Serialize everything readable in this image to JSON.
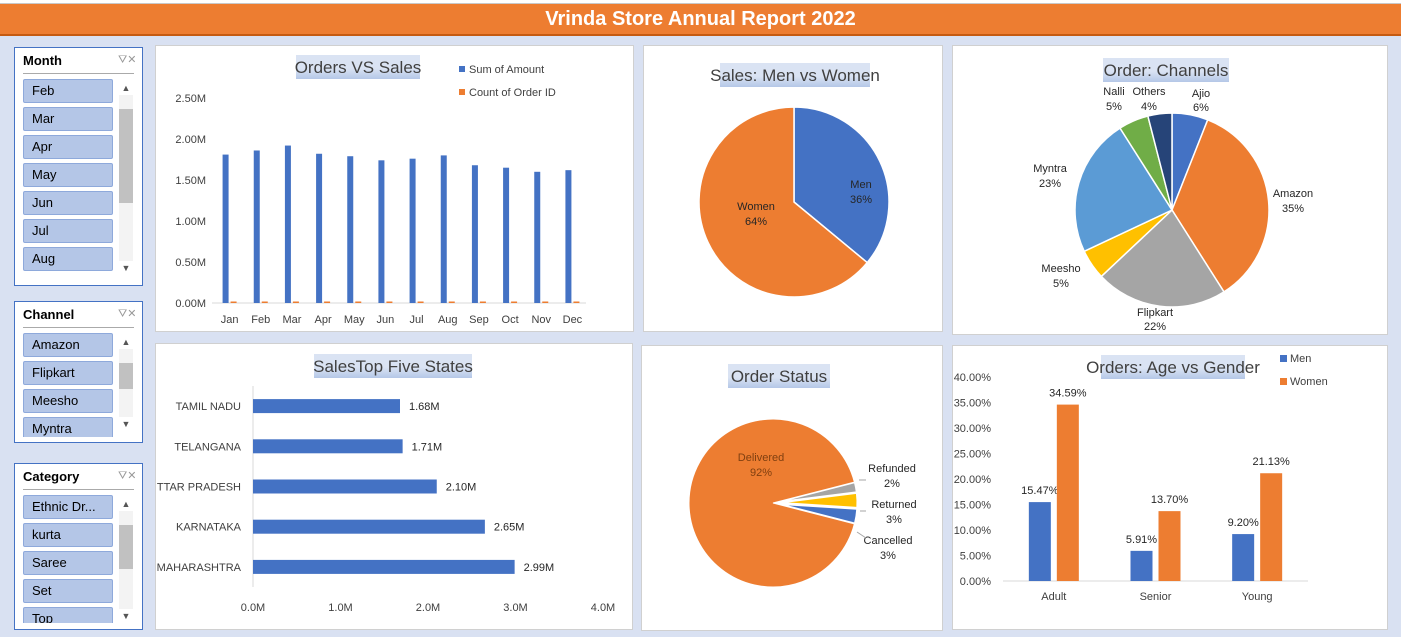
{
  "banner": {
    "title": "Vrinda Store Annual Report 2022"
  },
  "slicers": {
    "month": {
      "title": "Month",
      "items": [
        "Feb",
        "Mar",
        "Apr",
        "May",
        "Jun",
        "Jul",
        "Aug"
      ]
    },
    "channel": {
      "title": "Channel",
      "items": [
        "Amazon",
        "Flipkart",
        "Meesho",
        "Myntra"
      ]
    },
    "category": {
      "title": "Category",
      "items": [
        "Ethnic Dr...",
        "kurta",
        "Saree",
        "Set",
        "Top"
      ]
    }
  },
  "chart_data": [
    {
      "id": "orders-vs-sales",
      "type": "bar",
      "title": "Orders VS Sales",
      "categories": [
        "Jan",
        "Feb",
        "Mar",
        "Apr",
        "May",
        "Jun",
        "Jul",
        "Aug",
        "Sep",
        "Oct",
        "Nov",
        "Dec"
      ],
      "series": [
        {
          "name": "Sum of Amount",
          "color": "#4472c4",
          "values": [
            1.81,
            1.86,
            1.92,
            1.82,
            1.79,
            1.74,
            1.76,
            1.8,
            1.68,
            1.65,
            1.6,
            1.62
          ]
        },
        {
          "name": "Count of Order ID",
          "color": "#ed7d31",
          "values": [
            0.01,
            0.01,
            0.01,
            0.01,
            0.01,
            0.01,
            0.01,
            0.01,
            0.01,
            0.01,
            0.01,
            0.01
          ]
        }
      ],
      "ylim": [
        0,
        2.5
      ],
      "yticks": [
        "0.00M",
        "0.50M",
        "1.00M",
        "1.50M",
        "2.00M",
        "2.50M"
      ],
      "legend": "top-right"
    },
    {
      "id": "sales-men-women",
      "type": "pie",
      "title": "Sales: Men vs Women",
      "slices": [
        {
          "label": "Men",
          "pct": "36%",
          "value": 36,
          "color": "#4472c4"
        },
        {
          "label": "Women",
          "pct": "64%",
          "value": 64,
          "color": "#ed7d31"
        }
      ]
    },
    {
      "id": "order-channels",
      "type": "pie",
      "title": "Order: Channels",
      "slices": [
        {
          "label": "Ajio",
          "pct": "6%",
          "value": 6,
          "color": "#4472c4"
        },
        {
          "label": "Amazon",
          "pct": "35%",
          "value": 35,
          "color": "#ed7d31"
        },
        {
          "label": "Flipkart",
          "pct": "22%",
          "value": 22,
          "color": "#a5a5a5"
        },
        {
          "label": "Meesho",
          "pct": "5%",
          "value": 5,
          "color": "#ffc000"
        },
        {
          "label": "Myntra",
          "pct": "23%",
          "value": 23,
          "color": "#5b9bd5"
        },
        {
          "label": "Nalli",
          "pct": "5%",
          "value": 5,
          "color": "#70ad47"
        },
        {
          "label": "Others",
          "pct": "4%",
          "value": 4,
          "color": "#264478"
        }
      ]
    },
    {
      "id": "top-five-states",
      "type": "bar",
      "orientation": "horizontal",
      "title": "SalesTop Five States",
      "categories": [
        "TAMIL NADU",
        "TELANGANA",
        "UTTAR PRADESH",
        "KARNATAKA",
        "MAHARASHTRA"
      ],
      "values": [
        1.68,
        1.71,
        2.1,
        2.65,
        2.99
      ],
      "value_labels": [
        "1.68M",
        "1.71M",
        "2.10M",
        "2.65M",
        "2.99M"
      ],
      "xlim": [
        0,
        4
      ],
      "xticks": [
        "0.0M",
        "1.0M",
        "2.0M",
        "3.0M",
        "4.0M"
      ],
      "color": "#4472c4"
    },
    {
      "id": "order-status",
      "type": "pie",
      "title": "Order Status",
      "slices": [
        {
          "label": "Delivered",
          "pct": "92%",
          "value": 92,
          "color": "#ed7d31"
        },
        {
          "label": "Refunded",
          "pct": "2%",
          "value": 2,
          "color": "#a5a5a5"
        },
        {
          "label": "Returned",
          "pct": "3%",
          "value": 3,
          "color": "#ffc000"
        },
        {
          "label": "Cancelled",
          "pct": "3%",
          "value": 3,
          "color": "#4472c4"
        }
      ]
    },
    {
      "id": "age-vs-gender",
      "type": "bar",
      "title": "Orders: Age vs Gender",
      "categories": [
        "Adult",
        "Senior",
        "Young"
      ],
      "series": [
        {
          "name": "Men",
          "color": "#4472c4",
          "values": [
            15.47,
            5.91,
            9.2
          ],
          "labels": [
            "15.47%",
            "5.91%",
            "9.20%"
          ]
        },
        {
          "name": "Women",
          "color": "#ed7d31",
          "values": [
            34.59,
            13.7,
            21.13
          ],
          "labels": [
            "34.59%",
            "13.70%",
            "21.13%"
          ]
        }
      ],
      "ylim": [
        0,
        40
      ],
      "yticks": [
        "0.00%",
        "5.00%",
        "10.00%",
        "15.00%",
        "20.00%",
        "25.00%",
        "30.00%",
        "35.00%",
        "40.00%"
      ],
      "legend": "top-right"
    }
  ]
}
